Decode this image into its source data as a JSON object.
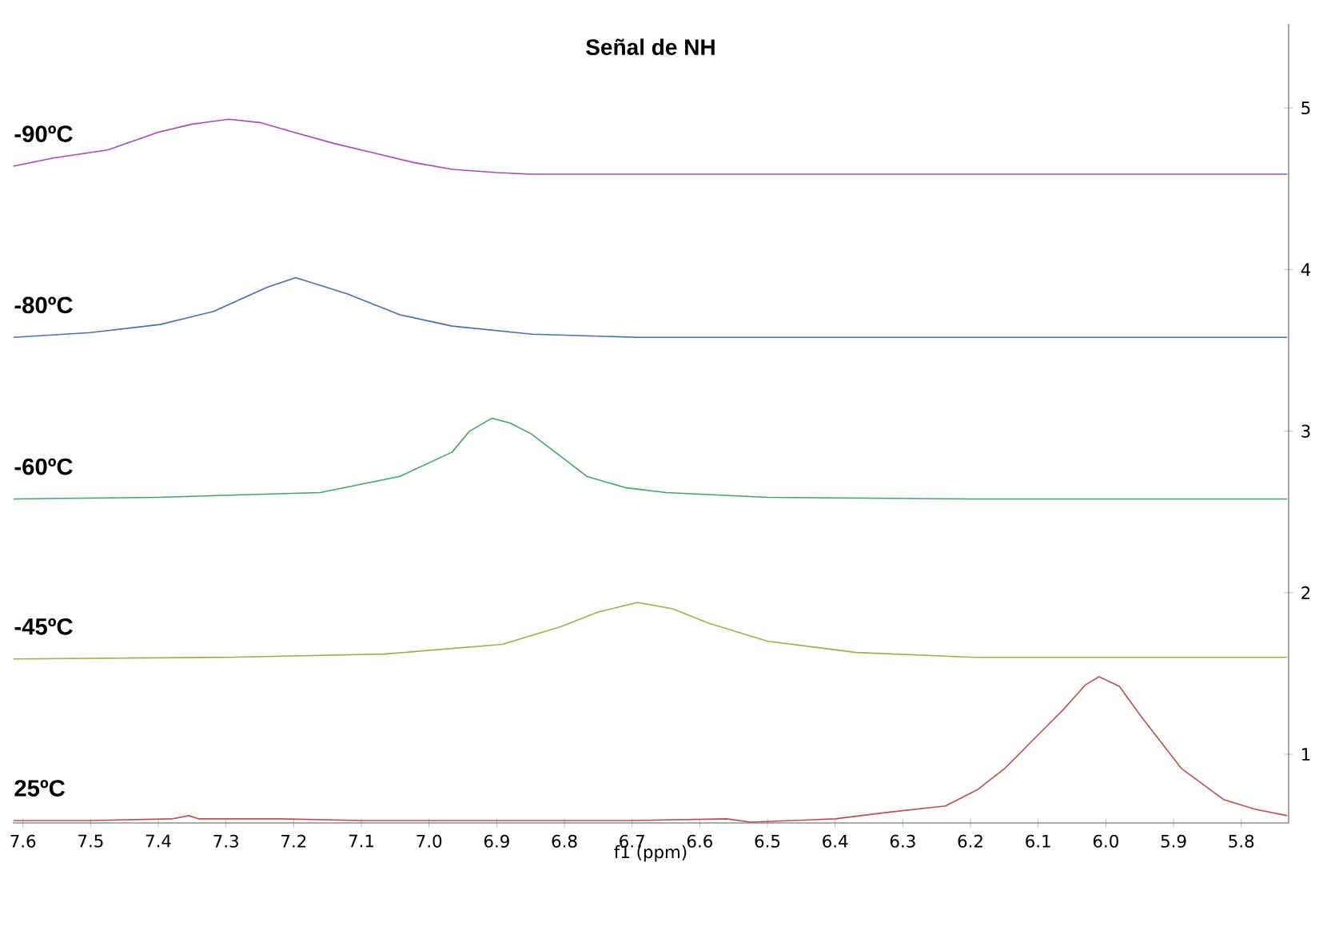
{
  "chart_data": {
    "type": "line",
    "title": "Señal de NH",
    "xlabel": "f1 (ppm)",
    "xlim": [
      7.615,
      5.73
    ],
    "ylim": [
      0.575,
      5.52
    ],
    "xticks": [
      7.6,
      7.5,
      7.4,
      7.3,
      7.2,
      7.1,
      {
        "value": 7,
        "label": "7.0"
      },
      6.9,
      6.8,
      6.7,
      6.6,
      6.5,
      6.4,
      6.3,
      6.2,
      6.1,
      {
        "value": 6,
        "label": "6.0"
      },
      5.9,
      5.8
    ],
    "yticks": [
      1,
      2,
      3,
      4,
      5
    ],
    "series": [
      {
        "name": "-90ºC",
        "color": "#a24db4",
        "x": [
          7.614,
          7.555,
          7.475,
          7.4,
          7.35,
          7.296,
          7.25,
          7.2,
          7.14,
          7.08,
          7.02,
          6.965,
          6.9,
          6.85,
          6.7,
          6.4,
          5.732
        ],
        "values": [
          4.64,
          4.69,
          4.74,
          4.85,
          4.9,
          4.93,
          4.91,
          4.85,
          4.78,
          4.72,
          4.66,
          4.62,
          4.6,
          4.59,
          4.59,
          4.59,
          4.59
        ]
      },
      {
        "name": "-80ºC",
        "color": "#4a6cb0",
        "x": [
          7.614,
          7.5,
          7.397,
          7.319,
          7.239,
          7.197,
          7.121,
          7.043,
          6.966,
          6.848,
          6.69,
          6.3,
          5.732
        ],
        "values": [
          3.58,
          3.61,
          3.66,
          3.74,
          3.89,
          3.95,
          3.85,
          3.72,
          3.65,
          3.6,
          3.58,
          3.58,
          3.58
        ]
      },
      {
        "name": "-60ºC",
        "color": "#3fa66b",
        "x": [
          7.614,
          7.4,
          7.161,
          7.043,
          6.966,
          6.94,
          6.907,
          6.88,
          6.848,
          6.767,
          6.71,
          6.65,
          6.5,
          6.2,
          5.732
        ],
        "values": [
          2.58,
          2.59,
          2.62,
          2.72,
          2.87,
          3.0,
          3.08,
          3.05,
          2.98,
          2.72,
          2.65,
          2.62,
          2.59,
          2.58,
          2.58
        ]
      },
      {
        "name": "-45ºC",
        "color": "#a3ad4a",
        "x": [
          7.614,
          7.3,
          7.067,
          6.892,
          6.805,
          6.75,
          6.692,
          6.64,
          6.586,
          6.5,
          6.369,
          6.194,
          5.732
        ],
        "values": [
          1.59,
          1.6,
          1.62,
          1.68,
          1.79,
          1.88,
          1.94,
          1.9,
          1.81,
          1.7,
          1.63,
          1.6,
          1.6
        ]
      },
      {
        "name": "25ºC",
        "color": "#bb4f4f",
        "x": [
          7.614,
          7.5,
          7.38,
          7.355,
          7.34,
          7.29,
          7.22,
          7.1,
          6.9,
          6.7,
          6.56,
          6.525,
          6.4,
          6.324,
          6.237,
          6.19,
          6.15,
          6.1,
          6.062,
          6.03,
          6.01,
          5.98,
          5.949,
          5.888,
          5.826,
          5.78,
          5.732
        ],
        "values": [
          0.59,
          0.59,
          0.6,
          0.62,
          0.6,
          0.6,
          0.6,
          0.59,
          0.59,
          0.59,
          0.6,
          0.58,
          0.6,
          0.64,
          0.68,
          0.78,
          0.91,
          1.12,
          1.28,
          1.43,
          1.48,
          1.42,
          1.24,
          0.91,
          0.72,
          0.66,
          0.62
        ]
      }
    ]
  }
}
